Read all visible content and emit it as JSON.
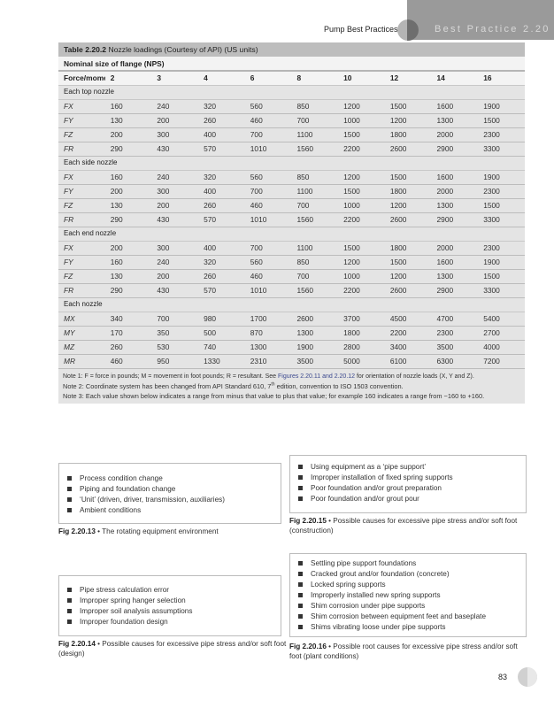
{
  "header": {
    "running_head": "Pump Best Practices",
    "section": "Best Practice 2.20"
  },
  "table": {
    "title_bold": "Table 2.20.2",
    "title_rest": "Nozzle loadings (Courtesy of API) (US units)",
    "nps_label": "Nominal size of flange (NPS)",
    "columns": [
      "Force/moment",
      "2",
      "3",
      "4",
      "6",
      "8",
      "10",
      "12",
      "14",
      "16"
    ],
    "sections": [
      {
        "name": "Each top nozzle",
        "rows": [
          [
            "FX",
            "160",
            "240",
            "320",
            "560",
            "850",
            "1200",
            "1500",
            "1600",
            "1900"
          ],
          [
            "FY",
            "130",
            "200",
            "260",
            "460",
            "700",
            "1000",
            "1200",
            "1300",
            "1500"
          ],
          [
            "FZ",
            "200",
            "300",
            "400",
            "700",
            "1100",
            "1500",
            "1800",
            "2000",
            "2300"
          ],
          [
            "FR",
            "290",
            "430",
            "570",
            "1010",
            "1560",
            "2200",
            "2600",
            "2900",
            "3300"
          ]
        ]
      },
      {
        "name": "Each side nozzle",
        "rows": [
          [
            "FX",
            "160",
            "240",
            "320",
            "560",
            "850",
            "1200",
            "1500",
            "1600",
            "1900"
          ],
          [
            "FY",
            "200",
            "300",
            "400",
            "700",
            "1100",
            "1500",
            "1800",
            "2000",
            "2300"
          ],
          [
            "FZ",
            "130",
            "200",
            "260",
            "460",
            "700",
            "1000",
            "1200",
            "1300",
            "1500"
          ],
          [
            "FR",
            "290",
            "430",
            "570",
            "1010",
            "1560",
            "2200",
            "2600",
            "2900",
            "3300"
          ]
        ]
      },
      {
        "name": "Each end nozzle",
        "rows": [
          [
            "FX",
            "200",
            "300",
            "400",
            "700",
            "1100",
            "1500",
            "1800",
            "2000",
            "2300"
          ],
          [
            "FY",
            "160",
            "240",
            "320",
            "560",
            "850",
            "1200",
            "1500",
            "1600",
            "1900"
          ],
          [
            "FZ",
            "130",
            "200",
            "260",
            "460",
            "700",
            "1000",
            "1200",
            "1300",
            "1500"
          ],
          [
            "FR",
            "290",
            "430",
            "570",
            "1010",
            "1560",
            "2200",
            "2600",
            "2900",
            "3300"
          ]
        ]
      },
      {
        "name": "Each nozzle",
        "rows": [
          [
            "MX",
            "340",
            "700",
            "980",
            "1700",
            "2600",
            "3700",
            "4500",
            "4700",
            "5400"
          ],
          [
            "MY",
            "170",
            "350",
            "500",
            "870",
            "1300",
            "1800",
            "2200",
            "2300",
            "2700"
          ],
          [
            "MZ",
            "260",
            "530",
            "740",
            "1300",
            "1900",
            "2800",
            "3400",
            "3500",
            "4000"
          ],
          [
            "MR",
            "460",
            "950",
            "1330",
            "2310",
            "3500",
            "5000",
            "6100",
            "6300",
            "7200"
          ]
        ]
      }
    ],
    "notes": {
      "note1_pre": "Note 1: F = force in pounds; M = movement in foot pounds; R = resultant. See ",
      "note1_link": "Figures 2.20.11 and 2.20.12",
      "note1_post": " for orientation of nozzle loads (X, Y and Z).",
      "note2_pre": "Note 2: Coordinate system has been changed from API Standard 610, 7",
      "note2_sup": "th",
      "note2_post": " edition, convention to ISO 1503 convention.",
      "note3": "Note 3: Each value shown below indicates a range from minus that value to plus that value; for example 160 indicates a range from −160 to +160."
    }
  },
  "figures": {
    "fig13": {
      "items": [
        "Process condition change",
        "Piping and foundation change",
        "‘Unit’ (driven, driver, transmission, auxiliaries)",
        "Ambient conditions"
      ],
      "label": "Fig 2.20.13",
      "caption": "The rotating equipment environment"
    },
    "fig15": {
      "items": [
        "Using equipment as a ‘pipe support’",
        "Improper installation of fixed spring supports",
        "Poor foundation and/or grout preparation",
        "Poor foundation and/or grout pour"
      ],
      "label": "Fig 2.20.15",
      "caption": "Possible causes for excessive pipe stress and/or soft foot (construction)"
    },
    "fig14": {
      "items": [
        "Pipe stress calculation error",
        "Improper spring hanger selection",
        "Improper soil analysis assumptions",
        "Improper foundation design"
      ],
      "label": "Fig 2.20.14",
      "caption": "Possible causes for excessive pipe stress and/or soft foot (design)"
    },
    "fig16": {
      "items": [
        "Settling pipe support foundations",
        "Cracked grout and/or foundation (concrete)",
        "Locked spring supports",
        "Improperly installed new spring supports",
        "Shim corrosion under pipe supports",
        "Shim corrosion between equipment feet and baseplate",
        "Shims vibrating loose under pipe supports"
      ],
      "label": "Fig 2.20.16",
      "caption": "Possible root causes for excessive pipe stress and/or soft foot (plant conditions)"
    }
  },
  "page_number": "83"
}
